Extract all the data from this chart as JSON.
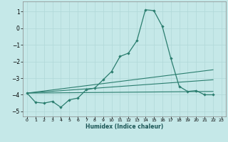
{
  "xlabel": "Humidex (Indice chaleur)",
  "bg_color": "#c5e8e8",
  "grid_color": "#b0d8d8",
  "line_color": "#2a7d6e",
  "xlim": [
    -0.5,
    23.5
  ],
  "ylim": [
    -5.3,
    1.6
  ],
  "yticks": [
    1,
    0,
    -1,
    -2,
    -3,
    -4,
    -5
  ],
  "xticks": [
    0,
    1,
    2,
    3,
    4,
    5,
    6,
    7,
    8,
    9,
    10,
    11,
    12,
    13,
    14,
    15,
    16,
    17,
    18,
    19,
    20,
    21,
    22,
    23
  ],
  "main_curve": {
    "x": [
      0,
      1,
      2,
      3,
      4,
      5,
      6,
      7,
      8,
      9,
      10,
      11,
      12,
      13,
      14,
      15,
      16,
      17,
      18,
      19,
      20,
      21,
      22
    ],
    "y": [
      -3.9,
      -4.45,
      -4.5,
      -4.4,
      -4.75,
      -4.3,
      -4.2,
      -3.7,
      -3.6,
      -3.1,
      -2.6,
      -1.7,
      -1.5,
      -0.75,
      1.1,
      1.05,
      0.1,
      -1.8,
      -3.5,
      -3.8,
      -3.75,
      -4.0,
      -4.0
    ]
  },
  "straight_lines": [
    {
      "x": [
        0,
        22
      ],
      "y": [
        -3.9,
        -3.8
      ]
    },
    {
      "x": [
        0,
        22
      ],
      "y": [
        -3.9,
        -3.1
      ]
    },
    {
      "x": [
        0,
        22
      ],
      "y": [
        -3.9,
        -2.5
      ]
    }
  ]
}
